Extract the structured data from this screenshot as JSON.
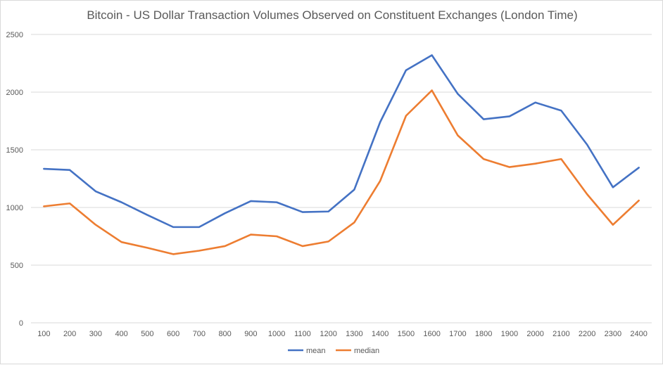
{
  "chart_data": {
    "type": "line",
    "title": "Bitcoin - US Dollar Transaction Volumes Observed on Constituent Exchanges (London Time)",
    "categories": [
      "100",
      "200",
      "300",
      "400",
      "500",
      "600",
      "700",
      "800",
      "900",
      "1000",
      "1100",
      "1200",
      "1300",
      "1400",
      "1500",
      "1600",
      "1700",
      "1800",
      "1900",
      "2000",
      "2100",
      "2200",
      "2300",
      "2400"
    ],
    "series": [
      {
        "name": "mean",
        "color": "#4472c4",
        "values": [
          1335,
          1325,
          1140,
          1045,
          935,
          830,
          830,
          950,
          1055,
          1045,
          960,
          965,
          1155,
          1740,
          2190,
          2320,
          1985,
          1765,
          1790,
          1910,
          1840,
          1545,
          1175,
          1345
        ]
      },
      {
        "name": "median",
        "color": "#ed7d31",
        "values": [
          1010,
          1035,
          850,
          700,
          650,
          595,
          625,
          665,
          765,
          750,
          665,
          705,
          870,
          1230,
          1795,
          2015,
          1625,
          1420,
          1350,
          1380,
          1420,
          1115,
          850,
          1060
        ]
      }
    ],
    "xlabel": "",
    "ylabel": "",
    "ylim": [
      0,
      2500
    ],
    "yticks": [
      0,
      500,
      1000,
      1500,
      2000,
      2500
    ],
    "grid": true,
    "legend_position": "bottom",
    "gridline_color": "#d9d9d9"
  }
}
